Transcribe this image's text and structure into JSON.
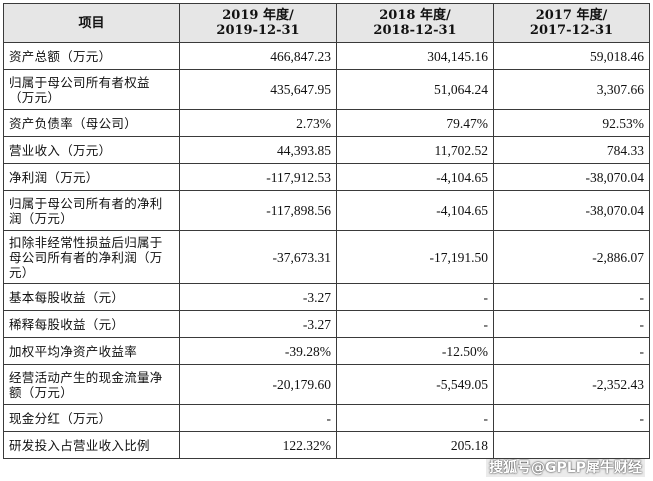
{
  "table": {
    "header": {
      "item": "项目",
      "col1_line1": "2019 年度/",
      "col1_line2": "2019-12-31",
      "col2_line1": "2018 年度/",
      "col2_line2": "2018-12-31",
      "col3_line1": "2017 年度/",
      "col3_line2": "2017-12-31"
    },
    "rows": [
      {
        "label": "资产总额（万元）",
        "v2019": "466,847.23",
        "v2018": "304,145.16",
        "v2017": "59,018.46"
      },
      {
        "label": "归属于母公司所有者权益（万元）",
        "v2019": "435,647.95",
        "v2018": "51,064.24",
        "v2017": "3,307.66"
      },
      {
        "label": "资产负债率（母公司）",
        "v2019": "2.73%",
        "v2018": "79.47%",
        "v2017": "92.53%"
      },
      {
        "label": "营业收入（万元）",
        "v2019": "44,393.85",
        "v2018": "11,702.52",
        "v2017": "784.33"
      },
      {
        "label": "净利润（万元）",
        "v2019": "-117,912.53",
        "v2018": "-4,104.65",
        "v2017": "-38,070.04"
      },
      {
        "label": "归属于母公司所有者的净利润（万元）",
        "v2019": "-117,898.56",
        "v2018": "-4,104.65",
        "v2017": "-38,070.04"
      },
      {
        "label": "扣除非经常性损益后归属于母公司所有者的净利润（万元）",
        "v2019": "-37,673.31",
        "v2018": "-17,191.50",
        "v2017": "-2,886.07"
      },
      {
        "label": "基本每股收益（元）",
        "v2019": "-3.27",
        "v2018": "-",
        "v2017": "-"
      },
      {
        "label": "稀释每股收益（元）",
        "v2019": "-3.27",
        "v2018": "-",
        "v2017": "-"
      },
      {
        "label": "加权平均净资产收益率",
        "v2019": "-39.28%",
        "v2018": "-12.50%",
        "v2017": "-"
      },
      {
        "label": "经营活动产生的现金流量净额（万元）",
        "v2019": "-20,179.60",
        "v2018": "-5,549.05",
        "v2017": "-2,352.43"
      },
      {
        "label": "现金分红（万元）",
        "v2019": "-",
        "v2018": "-",
        "v2017": "-"
      },
      {
        "label": "研发投入占营业收入比例",
        "v2019": "122.32%",
        "v2018": "205.18",
        "v2017": ""
      }
    ]
  },
  "watermark": "搜狐号@GPLP犀牛财经"
}
